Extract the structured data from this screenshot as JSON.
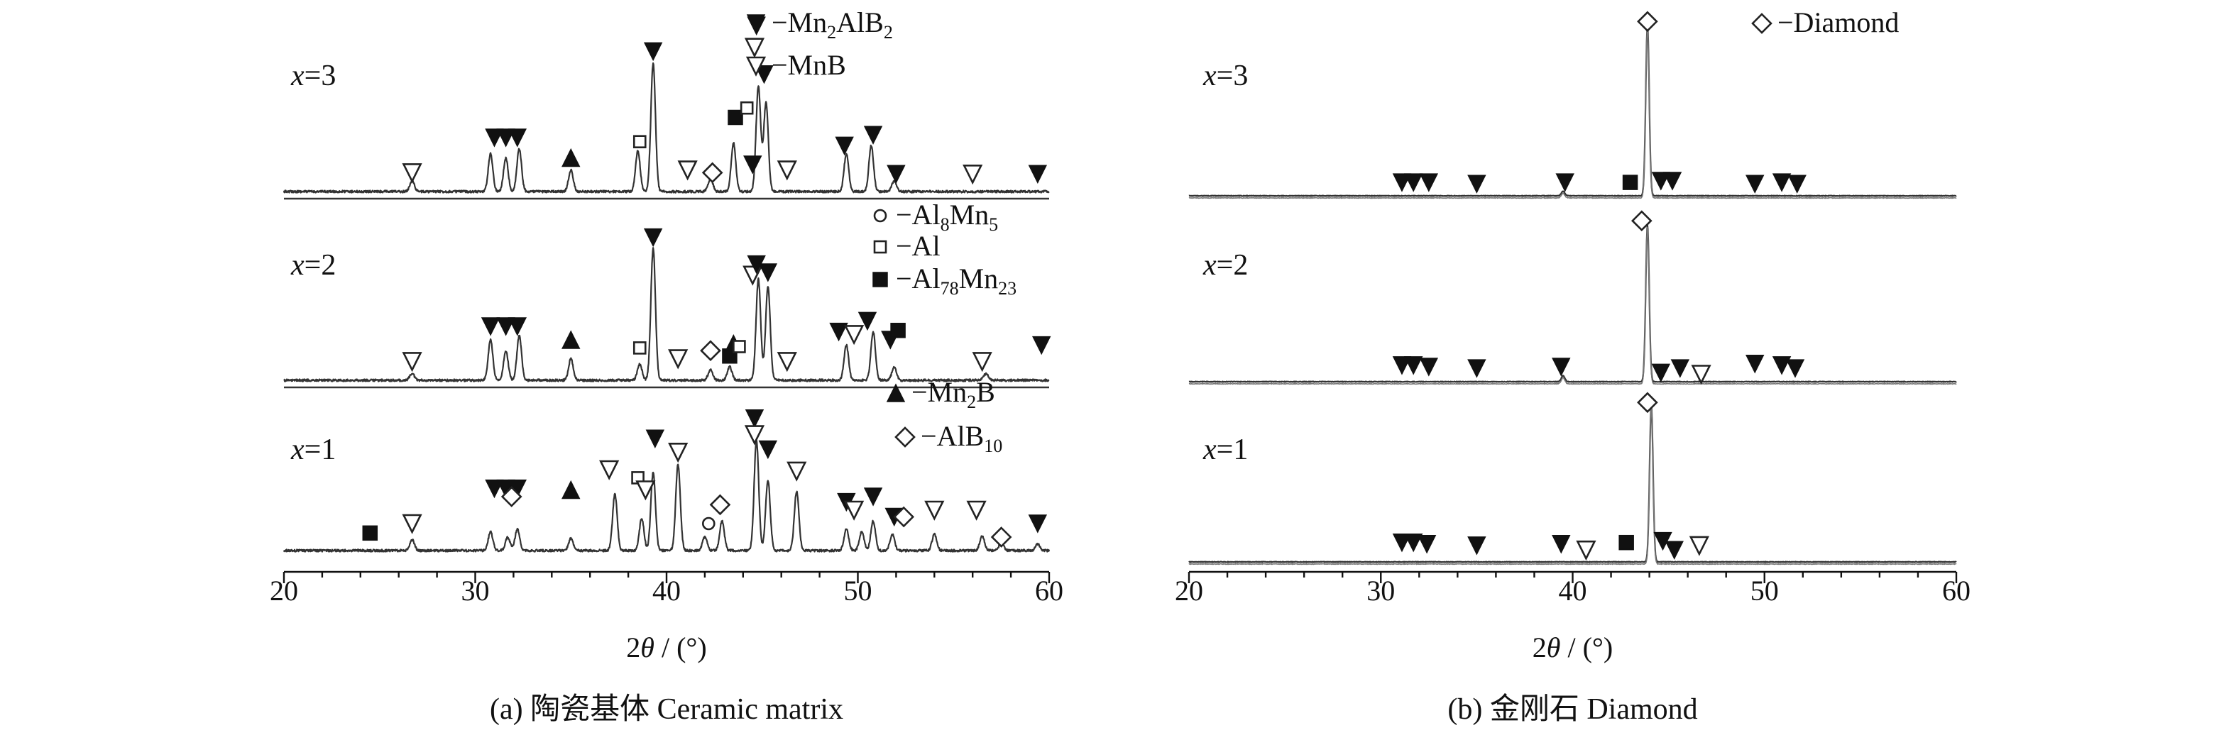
{
  "chart_data": [
    {
      "panel": "a",
      "type": "line",
      "caption": "(a) 陶瓷基体  Ceramic matrix",
      "xlabel": "2θ / (°)",
      "xlim": [
        20,
        60
      ],
      "xticks": [
        20,
        30,
        40,
        50,
        60
      ],
      "series": [
        {
          "name": "x=3",
          "peaks": [
            {
              "x": 26.7,
              "h": 0.08
            },
            {
              "x": 30.8,
              "h": 0.28
            },
            {
              "x": 31.6,
              "h": 0.25
            },
            {
              "x": 32.3,
              "h": 0.32
            },
            {
              "x": 35.0,
              "h": 0.16
            },
            {
              "x": 38.5,
              "h": 0.3
            },
            {
              "x": 39.3,
              "h": 0.95
            },
            {
              "x": 42.3,
              "h": 0.1
            },
            {
              "x": 43.5,
              "h": 0.36
            },
            {
              "x": 44.8,
              "h": 0.78
            },
            {
              "x": 45.2,
              "h": 0.66
            },
            {
              "x": 49.4,
              "h": 0.28
            },
            {
              "x": 50.7,
              "h": 0.34
            },
            {
              "x": 51.9,
              "h": 0.08
            }
          ],
          "markers": [
            {
              "x": 26.7,
              "phase": "MnB",
              "lvl": 0.14
            },
            {
              "x": 31.0,
              "phase": "Mn2AlB2",
              "lvl": 0.4
            },
            {
              "x": 31.6,
              "phase": "Mn2AlB2",
              "lvl": 0.4
            },
            {
              "x": 32.2,
              "phase": "Mn2AlB2",
              "lvl": 0.4
            },
            {
              "x": 35.0,
              "phase": "Mn2B",
              "lvl": 0.25
            },
            {
              "x": 38.6,
              "phase": "Al",
              "lvl": 0.37
            },
            {
              "x": 39.3,
              "phase": "Mn2AlB2",
              "lvl": 1.04
            },
            {
              "x": 41.1,
              "phase": "MnB",
              "lvl": 0.16
            },
            {
              "x": 42.4,
              "phase": "AlB10",
              "lvl": 0.14
            },
            {
              "x": 43.6,
              "phase": "Al78Mn23",
              "lvl": 0.55
            },
            {
              "x": 44.2,
              "phase": "Al",
              "lvl": 0.62
            },
            {
              "x": 44.7,
              "phase": "Mn2AlB2",
              "lvl": 1.23
            },
            {
              "x": 44.6,
              "phase": "MnB",
              "lvl": 1.07
            },
            {
              "x": 45.1,
              "phase": "Mn2AlB2",
              "lvl": 0.87
            },
            {
              "x": 44.5,
              "phase": "Mn2AlB2",
              "lvl": 0.2
            },
            {
              "x": 46.3,
              "phase": "MnB",
              "lvl": 0.16
            },
            {
              "x": 49.3,
              "phase": "Mn2AlB2",
              "lvl": 0.34
            },
            {
              "x": 50.8,
              "phase": "Mn2AlB2",
              "lvl": 0.42
            },
            {
              "x": 52.0,
              "phase": "Mn2AlB2",
              "lvl": 0.13
            },
            {
              "x": 56.0,
              "phase": "MnB",
              "lvl": 0.13
            },
            {
              "x": 59.4,
              "phase": "Mn2AlB2",
              "lvl": 0.13
            }
          ]
        },
        {
          "name": "x=2",
          "peaks": [
            {
              "x": 26.7,
              "h": 0.05
            },
            {
              "x": 30.8,
              "h": 0.3
            },
            {
              "x": 31.6,
              "h": 0.22
            },
            {
              "x": 32.3,
              "h": 0.33
            },
            {
              "x": 35.0,
              "h": 0.16
            },
            {
              "x": 38.6,
              "h": 0.12
            },
            {
              "x": 39.3,
              "h": 0.98
            },
            {
              "x": 42.3,
              "h": 0.08
            },
            {
              "x": 43.3,
              "h": 0.1
            },
            {
              "x": 44.8,
              "h": 0.75
            },
            {
              "x": 45.3,
              "h": 0.7
            },
            {
              "x": 49.4,
              "h": 0.26
            },
            {
              "x": 50.8,
              "h": 0.36
            },
            {
              "x": 51.9,
              "h": 0.1
            },
            {
              "x": 56.7,
              "h": 0.05
            }
          ],
          "markers": [
            {
              "x": 26.7,
              "phase": "MnB",
              "lvl": 0.14
            },
            {
              "x": 30.8,
              "phase": "Mn2AlB2",
              "lvl": 0.4
            },
            {
              "x": 31.6,
              "phase": "Mn2AlB2",
              "lvl": 0.4
            },
            {
              "x": 32.2,
              "phase": "Mn2AlB2",
              "lvl": 0.4
            },
            {
              "x": 35.0,
              "phase": "Mn2B",
              "lvl": 0.3
            },
            {
              "x": 38.6,
              "phase": "Al",
              "lvl": 0.24
            },
            {
              "x": 39.3,
              "phase": "Mn2AlB2",
              "lvl": 1.06
            },
            {
              "x": 40.6,
              "phase": "MnB",
              "lvl": 0.16
            },
            {
              "x": 42.3,
              "phase": "AlB10",
              "lvl": 0.22
            },
            {
              "x": 43.3,
              "phase": "Al78Mn23",
              "lvl": 0.18
            },
            {
              "x": 43.5,
              "phase": "Mn2B",
              "lvl": 0.27
            },
            {
              "x": 43.8,
              "phase": "Al",
              "lvl": 0.25
            },
            {
              "x": 44.5,
              "phase": "MnB",
              "lvl": 0.78
            },
            {
              "x": 44.7,
              "phase": "Mn2AlB2",
              "lvl": 0.86
            },
            {
              "x": 45.3,
              "phase": "Mn2AlB2",
              "lvl": 0.8
            },
            {
              "x": 46.3,
              "phase": "MnB",
              "lvl": 0.14
            },
            {
              "x": 49.0,
              "phase": "Mn2AlB2",
              "lvl": 0.36
            },
            {
              "x": 49.8,
              "phase": "MnB",
              "lvl": 0.34
            },
            {
              "x": 50.5,
              "phase": "Mn2AlB2",
              "lvl": 0.44
            },
            {
              "x": 51.7,
              "phase": "Mn2AlB2",
              "lvl": 0.3
            },
            {
              "x": 52.1,
              "phase": "Al78Mn23",
              "lvl": 0.37
            },
            {
              "x": 56.5,
              "phase": "MnB",
              "lvl": 0.14
            },
            {
              "x": 59.6,
              "phase": "Mn2AlB2",
              "lvl": 0.26
            }
          ]
        },
        {
          "name": "x=1",
          "peaks": [
            {
              "x": 26.7,
              "h": 0.08
            },
            {
              "x": 30.8,
              "h": 0.14
            },
            {
              "x": 31.7,
              "h": 0.1
            },
            {
              "x": 32.2,
              "h": 0.16
            },
            {
              "x": 35.0,
              "h": 0.09
            },
            {
              "x": 37.3,
              "h": 0.42
            },
            {
              "x": 38.7,
              "h": 0.24
            },
            {
              "x": 39.3,
              "h": 0.58
            },
            {
              "x": 40.6,
              "h": 0.64
            },
            {
              "x": 42.0,
              "h": 0.1
            },
            {
              "x": 42.9,
              "h": 0.22
            },
            {
              "x": 44.7,
              "h": 0.82
            },
            {
              "x": 45.3,
              "h": 0.52
            },
            {
              "x": 46.8,
              "h": 0.44
            },
            {
              "x": 49.4,
              "h": 0.16
            },
            {
              "x": 50.2,
              "h": 0.14
            },
            {
              "x": 50.8,
              "h": 0.22
            },
            {
              "x": 51.8,
              "h": 0.12
            },
            {
              "x": 54.0,
              "h": 0.12
            },
            {
              "x": 56.5,
              "h": 0.11
            },
            {
              "x": 57.5,
              "h": 0.06
            },
            {
              "x": 59.4,
              "h": 0.05
            }
          ],
          "markers": [
            {
              "x": 24.5,
              "phase": "Al78Mn23",
              "lvl": 0.13
            },
            {
              "x": 26.7,
              "phase": "MnB",
              "lvl": 0.2
            },
            {
              "x": 31.0,
              "phase": "Mn2AlB2",
              "lvl": 0.46
            },
            {
              "x": 31.6,
              "phase": "Mn2AlB2",
              "lvl": 0.46
            },
            {
              "x": 32.2,
              "phase": "Mn2AlB2",
              "lvl": 0.46
            },
            {
              "x": 31.9,
              "phase": "AlB10",
              "lvl": 0.4
            },
            {
              "x": 35.0,
              "phase": "Mn2B",
              "lvl": 0.45
            },
            {
              "x": 37.0,
              "phase": "MnB",
              "lvl": 0.6
            },
            {
              "x": 38.5,
              "phase": "Al",
              "lvl": 0.54
            },
            {
              "x": 38.9,
              "phase": "MnB",
              "lvl": 0.45
            },
            {
              "x": 39.4,
              "phase": "Mn2AlB2",
              "lvl": 0.83
            },
            {
              "x": 40.6,
              "phase": "MnB",
              "lvl": 0.73
            },
            {
              "x": 42.2,
              "phase": "Al8Mn5",
              "lvl": 0.2
            },
            {
              "x": 42.8,
              "phase": "AlB10",
              "lvl": 0.34
            },
            {
              "x": 44.6,
              "phase": "Mn2AlB2",
              "lvl": 0.98
            },
            {
              "x": 44.6,
              "phase": "MnB",
              "lvl": 0.86
            },
            {
              "x": 45.3,
              "phase": "Mn2AlB2",
              "lvl": 0.75
            },
            {
              "x": 46.8,
              "phase": "MnB",
              "lvl": 0.59
            },
            {
              "x": 49.4,
              "phase": "Mn2AlB2",
              "lvl": 0.36
            },
            {
              "x": 49.8,
              "phase": "MnB",
              "lvl": 0.3
            },
            {
              "x": 50.8,
              "phase": "Mn2AlB2",
              "lvl": 0.4
            },
            {
              "x": 51.9,
              "phase": "Mn2AlB2",
              "lvl": 0.25
            },
            {
              "x": 52.4,
              "phase": "AlB10",
              "lvl": 0.25
            },
            {
              "x": 54.0,
              "phase": "MnB",
              "lvl": 0.3
            },
            {
              "x": 56.2,
              "phase": "MnB",
              "lvl": 0.3
            },
            {
              "x": 57.5,
              "phase": "AlB10",
              "lvl": 0.1
            },
            {
              "x": 59.4,
              "phase": "Mn2AlB2",
              "lvl": 0.2
            }
          ]
        }
      ],
      "legend": [
        {
          "phase": "Mn2AlB2",
          "label": "−Mn",
          "sub1": "2",
          "mid": "AlB",
          "sub2": "2"
        },
        {
          "phase": "MnB",
          "label": "−MnB",
          "sub1": "",
          "mid": "",
          "sub2": ""
        },
        {
          "phase": "Al8Mn5",
          "label": "−Al",
          "sub1": "8",
          "mid": "Mn",
          "sub2": "5"
        },
        {
          "phase": "Al",
          "label": "−Al",
          "sub1": "",
          "mid": "",
          "sub2": ""
        },
        {
          "phase": "Al78Mn23",
          "label": "−Al",
          "sub1": "78",
          "mid": "Mn",
          "sub2": "23"
        },
        {
          "phase": "Mn2B",
          "label": "−Mn",
          "sub1": "2",
          "mid": "B",
          "sub2": ""
        },
        {
          "phase": "AlB10",
          "label": "−AlB",
          "sub1": "10",
          "mid": "",
          "sub2": ""
        }
      ]
    },
    {
      "panel": "b",
      "type": "line",
      "caption": "(b) 金刚石  Diamond",
      "xlabel": "2θ / (°)",
      "xlim": [
        20,
        60
      ],
      "xticks": [
        20,
        30,
        40,
        50,
        60
      ],
      "series": [
        {
          "name": "x=3",
          "peaks": [
            {
              "x": 39.5,
              "h": 0.03
            },
            {
              "x": 43.9,
              "h": 1.15
            }
          ],
          "markers": [
            {
              "x": 31.1,
              "phase": "Mn2AlB2",
              "lvl": 0.09
            },
            {
              "x": 31.7,
              "phase": "Mn2AlB2",
              "lvl": 0.09
            },
            {
              "x": 32.5,
              "phase": "Mn2AlB2",
              "lvl": 0.09
            },
            {
              "x": 35.0,
              "phase": "Mn2AlB2",
              "lvl": 0.08
            },
            {
              "x": 39.6,
              "phase": "Mn2AlB2",
              "lvl": 0.09
            },
            {
              "x": 43.0,
              "phase": "Al78Mn23",
              "lvl": 0.09
            },
            {
              "x": 43.9,
              "phase": "Diamond",
              "lvl": 1.17
            },
            {
              "x": 44.6,
              "phase": "Mn2AlB2",
              "lvl": 0.1
            },
            {
              "x": 45.2,
              "phase": "Mn2AlB2",
              "lvl": 0.1
            },
            {
              "x": 49.5,
              "phase": "Mn2AlB2",
              "lvl": 0.08
            },
            {
              "x": 50.9,
              "phase": "Mn2AlB2",
              "lvl": 0.09
            },
            {
              "x": 51.7,
              "phase": "Mn2AlB2",
              "lvl": 0.08
            }
          ]
        },
        {
          "name": "x=2",
          "peaks": [
            {
              "x": 39.5,
              "h": 0.04
            },
            {
              "x": 43.9,
              "h": 1.05
            }
          ],
          "markers": [
            {
              "x": 31.1,
              "phase": "Mn2AlB2",
              "lvl": 0.11
            },
            {
              "x": 31.7,
              "phase": "Mn2AlB2",
              "lvl": 0.11
            },
            {
              "x": 32.5,
              "phase": "Mn2AlB2",
              "lvl": 0.1
            },
            {
              "x": 35.0,
              "phase": "Mn2AlB2",
              "lvl": 0.09
            },
            {
              "x": 39.4,
              "phase": "Mn2AlB2",
              "lvl": 0.1
            },
            {
              "x": 43.6,
              "phase": "Diamond",
              "lvl": 1.08
            },
            {
              "x": 44.6,
              "phase": "Mn2AlB2",
              "lvl": 0.06
            },
            {
              "x": 45.6,
              "phase": "Mn2AlB2",
              "lvl": 0.09
            },
            {
              "x": 46.7,
              "phase": "MnB",
              "lvl": 0.05
            },
            {
              "x": 49.5,
              "phase": "Mn2AlB2",
              "lvl": 0.12
            },
            {
              "x": 50.9,
              "phase": "Mn2AlB2",
              "lvl": 0.11
            },
            {
              "x": 51.6,
              "phase": "Mn2AlB2",
              "lvl": 0.09
            }
          ]
        },
        {
          "name": "x=1",
          "peaks": [
            {
              "x": 44.1,
              "h": 1.05
            }
          ],
          "markers": [
            {
              "x": 31.1,
              "phase": "Mn2AlB2",
              "lvl": 0.13
            },
            {
              "x": 31.7,
              "phase": "Mn2AlB2",
              "lvl": 0.13
            },
            {
              "x": 32.4,
              "phase": "Mn2AlB2",
              "lvl": 0.12
            },
            {
              "x": 35.0,
              "phase": "Mn2AlB2",
              "lvl": 0.11
            },
            {
              "x": 39.4,
              "phase": "Mn2AlB2",
              "lvl": 0.12
            },
            {
              "x": 40.7,
              "phase": "MnB",
              "lvl": 0.08
            },
            {
              "x": 42.8,
              "phase": "Al78Mn23",
              "lvl": 0.13
            },
            {
              "x": 43.9,
              "phase": "Diamond",
              "lvl": 1.07
            },
            {
              "x": 44.7,
              "phase": "Mn2AlB2",
              "lvl": 0.14
            },
            {
              "x": 45.3,
              "phase": "Mn2AlB2",
              "lvl": 0.08
            },
            {
              "x": 46.6,
              "phase": "MnB",
              "lvl": 0.11
            }
          ]
        }
      ],
      "legend": [
        {
          "phase": "Diamond",
          "label": "−Diamond",
          "sub1": "",
          "mid": "",
          "sub2": ""
        }
      ]
    }
  ]
}
